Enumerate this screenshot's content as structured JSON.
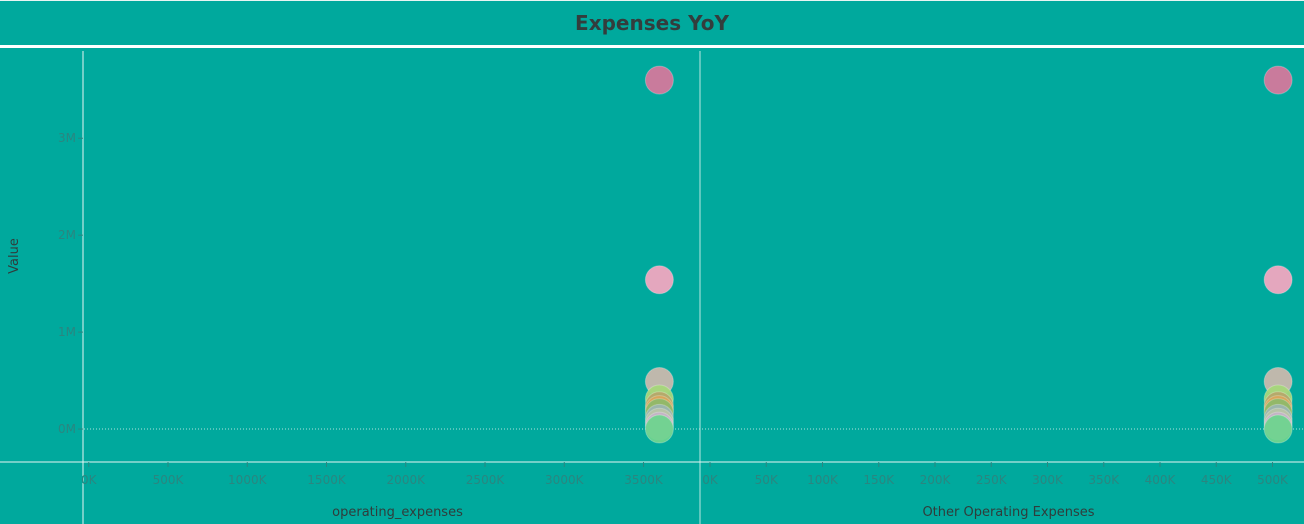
{
  "title": "Expenses YoY",
  "colors": {
    "background": "#00a99d",
    "rule": "#e8f5f3",
    "tick_text": "#2a8680",
    "axis_title": "#2f3d3c"
  },
  "chart_data": {
    "type": "scatter",
    "title": "Expenses YoY",
    "ylabel": "Value",
    "y": {
      "range": [
        -340000,
        3900000
      ],
      "ticks": [
        0,
        1000000,
        2000000,
        3000000
      ],
      "tick_labels": [
        "0M",
        "1M",
        "2M",
        "3M"
      ]
    },
    "grid": false,
    "zero_line": true,
    "panels": [
      {
        "xlabel": "operating_expenses",
        "x_range": [
          -30000,
          3850000
        ],
        "x_ticks": [
          0,
          500000,
          1000000,
          1500000,
          2000000,
          2500000,
          3000000,
          3500000
        ],
        "x_tick_labels": [
          "0K",
          "500K",
          "1000K",
          "1500K",
          "2000K",
          "2500K",
          "3000K",
          "3500K"
        ],
        "points": [
          {
            "x": 3600000,
            "y": 3600000,
            "color": "#d4789c"
          },
          {
            "x": 3600000,
            "y": 1540000,
            "color": "#f0a6c0"
          },
          {
            "x": 3600000,
            "y": 490000,
            "color": "#c9b8ad"
          },
          {
            "x": 3600000,
            "y": 310000,
            "color": "#a5d67a"
          },
          {
            "x": 3600000,
            "y": 240000,
            "color": "#b5a86a"
          },
          {
            "x": 3600000,
            "y": 200000,
            "color": "#d9a55b"
          },
          {
            "x": 3600000,
            "y": 170000,
            "color": "#8fb86a"
          },
          {
            "x": 3600000,
            "y": 110000,
            "color": "#9bb5b0"
          },
          {
            "x": 3600000,
            "y": 70000,
            "color": "#b8c4a8"
          },
          {
            "x": 3600000,
            "y": 30000,
            "color": "#c4b3c6"
          },
          {
            "x": 3600000,
            "y": 0,
            "color": "#6fd48f"
          }
        ]
      },
      {
        "xlabel": "Other Operating Expenses",
        "x_range": [
          -8000,
          528000
        ],
        "x_ticks": [
          0,
          50000,
          100000,
          150000,
          200000,
          250000,
          300000,
          350000,
          400000,
          450000,
          500000
        ],
        "x_tick_labels": [
          "0K",
          "50K",
          "100K",
          "150K",
          "200K",
          "250K",
          "300K",
          "350K",
          "400K",
          "450K",
          "500K"
        ],
        "points": [
          {
            "x": 505000,
            "y": 3600000,
            "color": "#d4789c"
          },
          {
            "x": 505000,
            "y": 1540000,
            "color": "#f0a6c0"
          },
          {
            "x": 505000,
            "y": 490000,
            "color": "#c9b8ad"
          },
          {
            "x": 505000,
            "y": 310000,
            "color": "#a5d67a"
          },
          {
            "x": 505000,
            "y": 240000,
            "color": "#b5a86a"
          },
          {
            "x": 505000,
            "y": 200000,
            "color": "#d9a55b"
          },
          {
            "x": 505000,
            "y": 170000,
            "color": "#8fb86a"
          },
          {
            "x": 505000,
            "y": 110000,
            "color": "#9bb5b0"
          },
          {
            "x": 505000,
            "y": 70000,
            "color": "#b8c4a8"
          },
          {
            "x": 505000,
            "y": 30000,
            "color": "#c4b3c6"
          },
          {
            "x": 505000,
            "y": 0,
            "color": "#6fd48f"
          }
        ]
      }
    ]
  }
}
